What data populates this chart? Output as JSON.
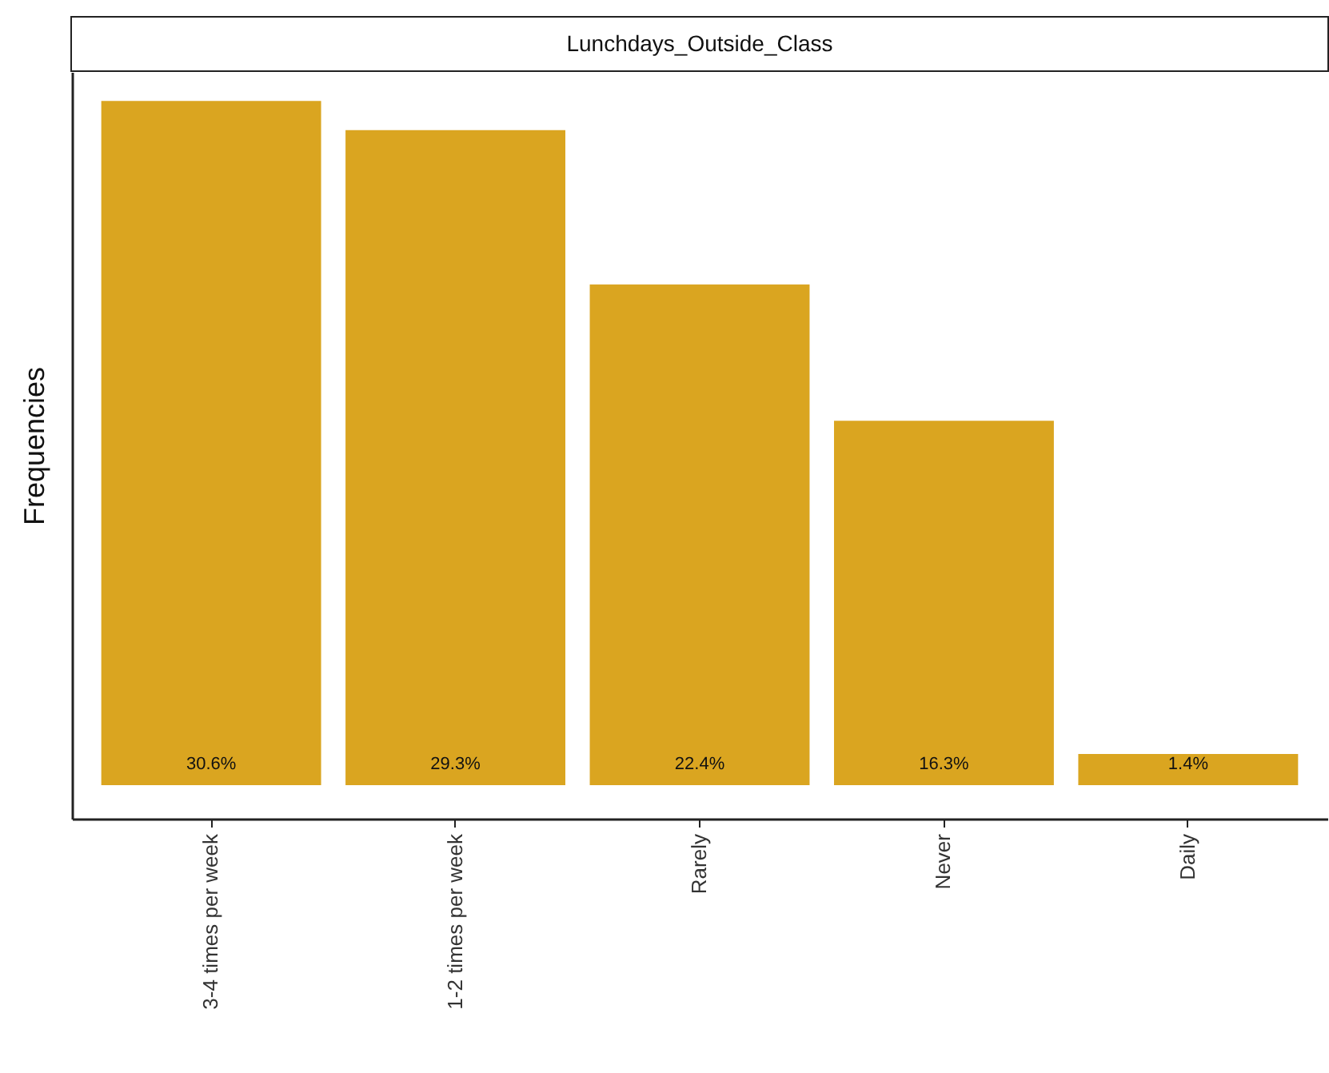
{
  "chart_data": {
    "type": "bar",
    "title": "Lunchdays_Outside_Class",
    "ylabel": "Frequencies",
    "categories": [
      "3-4 times per week",
      "1-2 times per week",
      "Rarely",
      "Never",
      "Daily"
    ],
    "values": [
      30.6,
      29.3,
      22.4,
      16.3,
      1.4
    ],
    "color": "#daa520",
    "value_labels": [
      "30.6%",
      "29.3%",
      "22.4%",
      "16.3%",
      "1.4%"
    ],
    "ylim": [
      -1.5,
      31.9
    ],
    "tick_labels": "x",
    "grid": false
  }
}
